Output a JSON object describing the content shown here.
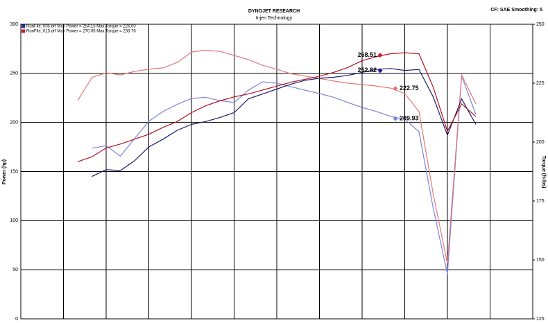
{
  "chart_data": {
    "type": "line",
    "title": "DYNOJET RESEARCH",
    "subtitle": "Injen Technology",
    "corner_note": "CF: SAE  Smoothing: 5",
    "ylabel": "Power (hp)",
    "y2label": "Torque (ft-lbs)",
    "ylim": [
      0,
      300
    ],
    "yticks": [
      0,
      50,
      100,
      150,
      200,
      250,
      300
    ],
    "y2lim": [
      125,
      250
    ],
    "y2ticks": [
      125,
      150,
      175,
      200,
      225,
      250
    ],
    "grid": true,
    "legend": [
      {
        "label": "RunFile_005.drf Max Power = 254.15   Max Torque = 226.00",
        "color": "#2a2a9a"
      },
      {
        "label": "RunFile_013.drf Max Power = 270.05   Max Torque = 238.76",
        "color": "#c0202a"
      }
    ],
    "categories": [
      null,
      null,
      null,
      null,
      null,
      null,
      null,
      null,
      null,
      null,
      null,
      null,
      null,
      null,
      null,
      null,
      null,
      null,
      null,
      null,
      null,
      null,
      null,
      null,
      null,
      null,
      null,
      null,
      null,
      null,
      null,
      null,
      null,
      null,
      null,
      null,
      null
    ],
    "series": [
      {
        "color": "#7f84d8",
        "axis": "y2",
        "values": [
          null,
          null,
          null,
          null,
          null,
          197.4,
          198.5,
          194,
          201.5,
          208.8,
          213,
          216,
          218.5,
          219,
          217.6,
          216.8,
          222,
          225.6,
          225,
          223.5,
          222,
          220.6,
          219,
          216.8,
          214.7,
          213,
          210.9,
          209.7,
          204.4,
          172,
          144,
          228,
          211.8,
          null,
          null,
          null,
          null
        ]
      },
      {
        "color": "#e07a78",
        "axis": "y2",
        "values": [
          null,
          null,
          null,
          null,
          217.6,
          227.4,
          229.4,
          228.5,
          230,
          230.9,
          231.5,
          233.8,
          238.2,
          239,
          238.5,
          236.8,
          235,
          232.6,
          230.9,
          229,
          228,
          227,
          225.9,
          225,
          224.4,
          223.8,
          222.9,
          220.6,
          213,
          178,
          148.5,
          228.5,
          216.2,
          null,
          null,
          null,
          null
        ]
      },
      {
        "color": "#1a1a6e",
        "axis": "y",
        "values": [
          null,
          null,
          null,
          null,
          null,
          145,
          152,
          151,
          161,
          175,
          183,
          192,
          198,
          201,
          205,
          210,
          224,
          229,
          234,
          239,
          243,
          245,
          246,
          248,
          251,
          254,
          255,
          253,
          254,
          226,
          187,
          224,
          198,
          null,
          null,
          null,
          null
        ]
      },
      {
        "color": "#b01020",
        "axis": "y",
        "values": [
          null,
          null,
          null,
          null,
          160,
          165,
          174,
          178,
          183,
          188,
          195,
          201,
          210,
          217,
          222,
          226,
          229,
          233,
          237,
          241,
          244,
          247,
          251,
          256,
          263,
          267,
          270,
          271,
          270,
          236,
          191,
          219,
          206,
          null,
          null,
          null,
          null
        ]
      }
    ],
    "annotations": [
      {
        "value": 268.51,
        "axis": "y",
        "color": "#c0202a"
      },
      {
        "value": 252.82,
        "axis": "y",
        "color": "#1a1a9a"
      },
      {
        "value": 222.75,
        "axis": "y2",
        "color": "#e07a78"
      },
      {
        "value": 209.93,
        "axis": "y2",
        "color": "#7f84d8"
      }
    ]
  }
}
